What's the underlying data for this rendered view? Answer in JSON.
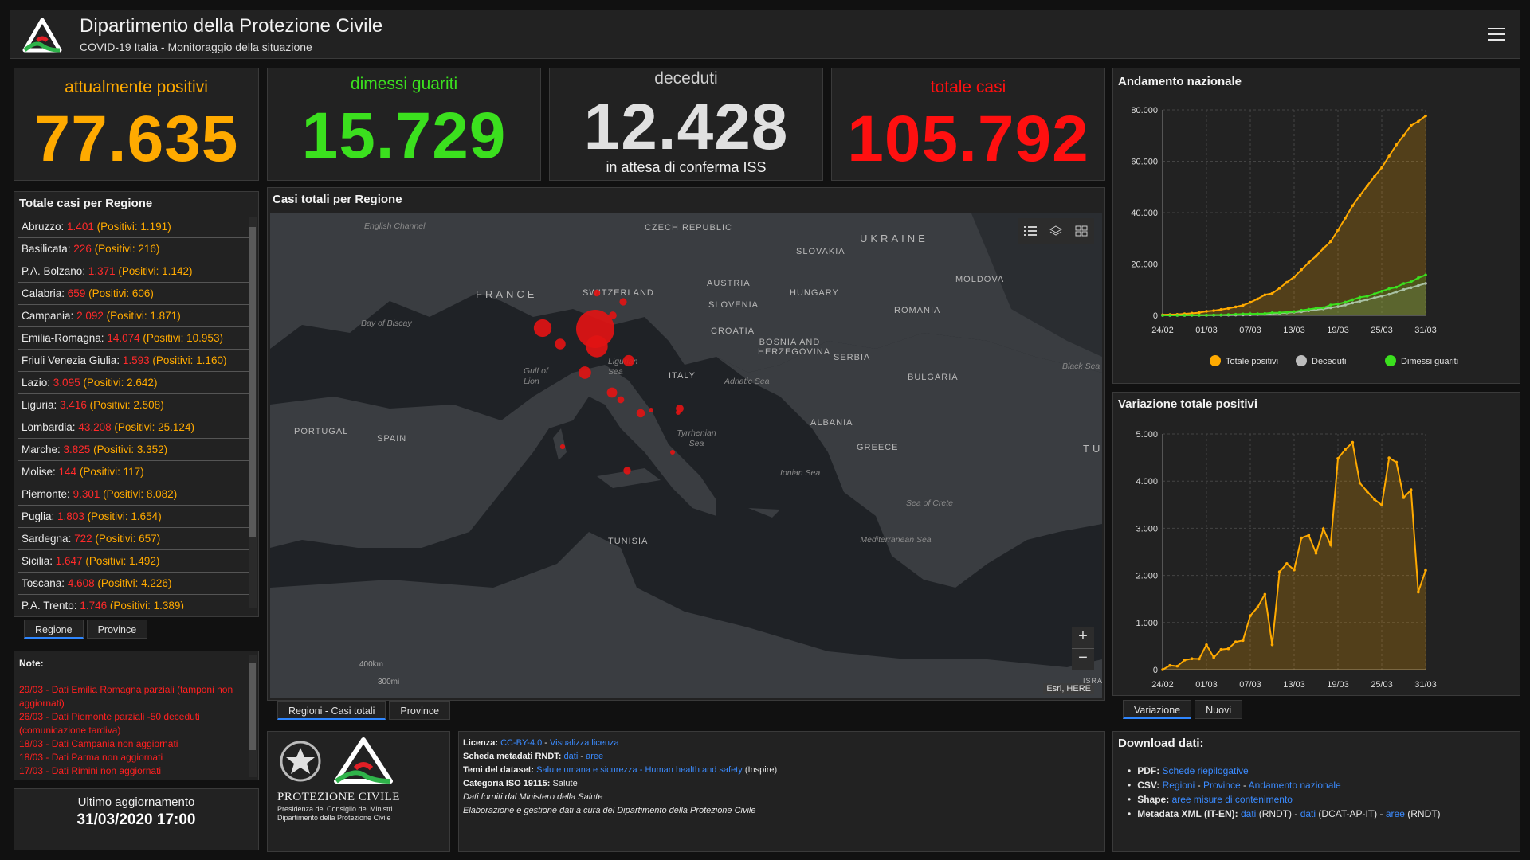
{
  "header": {
    "title": "Dipartimento della Protezione Civile",
    "subtitle": "COVID-19 Italia - Monitoraggio della situazione"
  },
  "counters": {
    "positivi": {
      "label": "attualmente positivi",
      "value": "77.635"
    },
    "guariti": {
      "label": "dimessi guariti",
      "value": "15.729"
    },
    "deceduti": {
      "label": "deceduti",
      "value": "12.428",
      "note": "in attesa di conferma ISS"
    },
    "totale": {
      "label": "totale casi",
      "value": "105.792"
    }
  },
  "regions": {
    "title": "Totale casi per Regione",
    "positivi_label": "Positivi",
    "items": [
      {
        "name": "Abruzzo",
        "total": "1.401",
        "positive": "1.191"
      },
      {
        "name": "Basilicata",
        "total": "226",
        "positive": "216"
      },
      {
        "name": "P.A. Bolzano",
        "total": "1.371",
        "positive": "1.142"
      },
      {
        "name": "Calabria",
        "total": "659",
        "positive": "606"
      },
      {
        "name": "Campania",
        "total": "2.092",
        "positive": "1.871"
      },
      {
        "name": "Emilia-Romagna",
        "total": "14.074",
        "positive": "10.953"
      },
      {
        "name": "Friuli Venezia Giulia",
        "total": "1.593",
        "positive": "1.160"
      },
      {
        "name": "Lazio",
        "total": "3.095",
        "positive": "2.642"
      },
      {
        "name": "Liguria",
        "total": "3.416",
        "positive": "2.508"
      },
      {
        "name": "Lombardia",
        "total": "43.208",
        "positive": "25.124"
      },
      {
        "name": "Marche",
        "total": "3.825",
        "positive": "3.352"
      },
      {
        "name": "Molise",
        "total": "144",
        "positive": "117"
      },
      {
        "name": "Piemonte",
        "total": "9.301",
        "positive": "8.082"
      },
      {
        "name": "Puglia",
        "total": "1.803",
        "positive": "1.654"
      },
      {
        "name": "Sardegna",
        "total": "722",
        "positive": "657"
      },
      {
        "name": "Sicilia",
        "total": "1.647",
        "positive": "1.492"
      },
      {
        "name": "Toscana",
        "total": "4.608",
        "positive": "4.226"
      },
      {
        "name": "P.A. Trento",
        "total": "1.746",
        "positive": "1.389"
      }
    ],
    "tabs": [
      "Regione",
      "Province"
    ]
  },
  "notes": {
    "title": "Note:",
    "items": [
      "29/03 - Dati  Emilia Romagna parziali (tamponi non aggiornati)",
      "26/03 - Dati Piemonte parziali -50 deceduti (comunicazione tardiva)",
      "18/03 - Dati Campania non aggiornati",
      "18/03 - Dati Parma non aggiornati",
      "17/03 - Dati Rimini non aggiornati"
    ]
  },
  "update": {
    "label": "Ultimo aggiornamento",
    "value": "31/03/2020 17:00"
  },
  "map": {
    "title": "Casi totali per Regione",
    "tabs": [
      "Regioni - Casi totali",
      "Province"
    ],
    "attribution": "Esri, HERE",
    "scale_km": "400km",
    "scale_mi": "300mi",
    "zoom_in": "+",
    "zoom_out": "−",
    "labels": {
      "english_channel": "English Channel",
      "czech": "CZECH REPUBLIC",
      "ukraine": "UKRAINE",
      "slovakia": "SLOVAKIA",
      "austria": "AUSTRIA",
      "moldova": "MOLDOVA",
      "france": "FRANCE",
      "switzerland": "SWITZERLAND",
      "hungary": "HUNGARY",
      "slovenia": "SLOVENIA",
      "romania": "ROMANIA",
      "croatia": "CROATIA",
      "bay_biscay": "Bay of Biscay",
      "bosnia": "BOSNIA AND HERZEGOVINA",
      "serbia": "SERBIA",
      "ligurian": "Ligurian Sea",
      "gulf_lion": "Gulf of Lion",
      "italy": "ITALY",
      "adriatic": "Adriatic Sea",
      "bulgaria": "BULGARIA",
      "black_sea": "Black Sea",
      "albania": "ALBANIA",
      "portugal": "PORTUGAL",
      "spain": "SPAIN",
      "tyrrhenian": "Tyrrhenian Sea",
      "greece": "GREECE",
      "tu": "TU",
      "ionian": "Ionian Sea",
      "crete": "Sea of Crete",
      "tunisia": "TUNISIA",
      "mediterranean": "Mediterranean Sea",
      "isra": "ISRA"
    }
  },
  "logos": {
    "brand": "PROTEZIONE CIVILE",
    "line1": "Presidenza del Consiglio dei Ministri",
    "line2": "Dipartimento della Protezione Civile"
  },
  "license": {
    "licenza_label": "Licenza:",
    "licenza_link": "CC-BY-4.0",
    "licenza_link2": "Visualizza licenza",
    "metadati_label": "Scheda metadati RNDT:",
    "metadati_link1": "dati",
    "metadati_link2": "aree",
    "temi_label": "Temi del dataset:",
    "temi_link": "Salute umana e sicurezza - Human health and safety",
    "temi_extra": "(Inspire)",
    "categoria_label": "Categoria ISO 19115:",
    "categoria_value": "Salute",
    "fonte": "Dati forniti dal Ministero della Salute",
    "elaborazione": "Elaborazione e gestione dati a cura del Dipartimento della Protezione Civile"
  },
  "chart1": {
    "title": "Andamento nazionale",
    "legend": [
      "Totale positivi",
      "Deceduti",
      "Dimessi guariti"
    ]
  },
  "chart2": {
    "title": "Variazione totale positivi",
    "tabs": [
      "Variazione",
      "Nuovi"
    ]
  },
  "download": {
    "title": "Download dati:",
    "pdf_label": "PDF:",
    "pdf_link": "Schede riepilogative",
    "csv_label": "CSV:",
    "csv_l1": "Regioni",
    "csv_l2": "Province",
    "csv_l3": "Andamento nazionale",
    "shape_label": "Shape:",
    "shape_link": "aree misure di contenimento",
    "xml_label": "Metadata XML (IT-EN):",
    "xml_l1": "dati",
    "xml_t1": "(RNDT)",
    "xml_l2": "dati",
    "xml_t2": "(DCAT-AP-IT)",
    "xml_l3": "aree",
    "xml_t3": "(RNDT)"
  },
  "colors": {
    "positivi": "#ffaa00",
    "guariti": "#3be01e",
    "deceduti": "#bdbdbd",
    "totale": "#ff1010",
    "link": "#3b8bff"
  },
  "chart_data": [
    {
      "type": "area",
      "title": "Andamento nazionale",
      "x_ticks": [
        "24/02",
        "01/03",
        "07/03",
        "13/03",
        "19/03",
        "25/03",
        "31/03"
      ],
      "y_ticks": [
        "0",
        "20.000",
        "40.000",
        "60.000",
        "80.000"
      ],
      "ylim": [
        0,
        80000
      ],
      "x": [
        "24/02",
        "25/02",
        "26/02",
        "27/02",
        "28/02",
        "29/02",
        "01/03",
        "02/03",
        "03/03",
        "04/03",
        "05/03",
        "06/03",
        "07/03",
        "08/03",
        "09/03",
        "10/03",
        "11/03",
        "12/03",
        "13/03",
        "14/03",
        "15/03",
        "16/03",
        "17/03",
        "18/03",
        "19/03",
        "20/03",
        "21/03",
        "22/03",
        "23/03",
        "24/03",
        "25/03",
        "26/03",
        "27/03",
        "28/03",
        "29/03",
        "30/03",
        "31/03"
      ],
      "series": [
        {
          "name": "Totale positivi",
          "color": "#ffaa00",
          "values": [
            221,
            311,
            385,
            588,
            821,
            1049,
            1577,
            1835,
            2263,
            2706,
            3296,
            3916,
            5061,
            6387,
            7985,
            8514,
            10590,
            12839,
            14955,
            17750,
            20603,
            23073,
            26062,
            28710,
            33190,
            37860,
            42681,
            46638,
            50418,
            54030,
            57521,
            62013,
            66414,
            70065,
            73880,
            75528,
            77635
          ]
        },
        {
          "name": "Deceduti",
          "color": "#bdbdbd",
          "values": [
            7,
            10,
            12,
            17,
            21,
            29,
            34,
            52,
            79,
            107,
            148,
            197,
            233,
            366,
            463,
            631,
            827,
            1016,
            1266,
            1441,
            1809,
            2158,
            2503,
            2978,
            3405,
            4032,
            4825,
            5476,
            6077,
            6820,
            7503,
            8165,
            9134,
            10023,
            10779,
            11591,
            12428
          ]
        },
        {
          "name": "Dimessi guariti",
          "color": "#3be01e",
          "values": [
            1,
            1,
            3,
            45,
            46,
            50,
            83,
            149,
            160,
            276,
            414,
            523,
            589,
            622,
            724,
            1004,
            1045,
            1258,
            1439,
            1966,
            2335,
            2749,
            2941,
            4025,
            4440,
            5129,
            6072,
            7024,
            7432,
            8326,
            9362,
            10361,
            10950,
            12384,
            13030,
            14620,
            15729
          ]
        }
      ],
      "legend_position": "bottom"
    },
    {
      "type": "area",
      "title": "Variazione totale positivi",
      "x_ticks": [
        "24/02",
        "01/03",
        "07/03",
        "13/03",
        "19/03",
        "25/03",
        "31/03"
      ],
      "y_ticks": [
        "0",
        "1.000",
        "2.000",
        "3.000",
        "4.000",
        "5.000"
      ],
      "ylim": [
        0,
        5000
      ],
      "x": [
        "24/02",
        "25/02",
        "26/02",
        "27/02",
        "28/02",
        "29/02",
        "01/03",
        "02/03",
        "03/03",
        "04/03",
        "05/03",
        "06/03",
        "07/03",
        "08/03",
        "09/03",
        "10/03",
        "11/03",
        "12/03",
        "13/03",
        "14/03",
        "15/03",
        "16/03",
        "17/03",
        "18/03",
        "19/03",
        "20/03",
        "21/03",
        "22/03",
        "23/03",
        "24/03",
        "25/03",
        "26/03",
        "27/03",
        "28/03",
        "29/03",
        "30/03",
        "31/03"
      ],
      "series": [
        {
          "name": "Variazione",
          "color": "#ffaa00",
          "values": [
            0,
            90,
            74,
            203,
            233,
            228,
            528,
            258,
            428,
            444,
            590,
            620,
            1145,
            1326,
            1598,
            529,
            2076,
            2249,
            2116,
            2795,
            2853,
            2470,
            2989,
            2648,
            4480,
            4670,
            4821,
            3957,
            3780,
            3612,
            3491,
            4492,
            4401,
            3651,
            3815,
            1648,
            2107
          ]
        }
      ]
    }
  ]
}
